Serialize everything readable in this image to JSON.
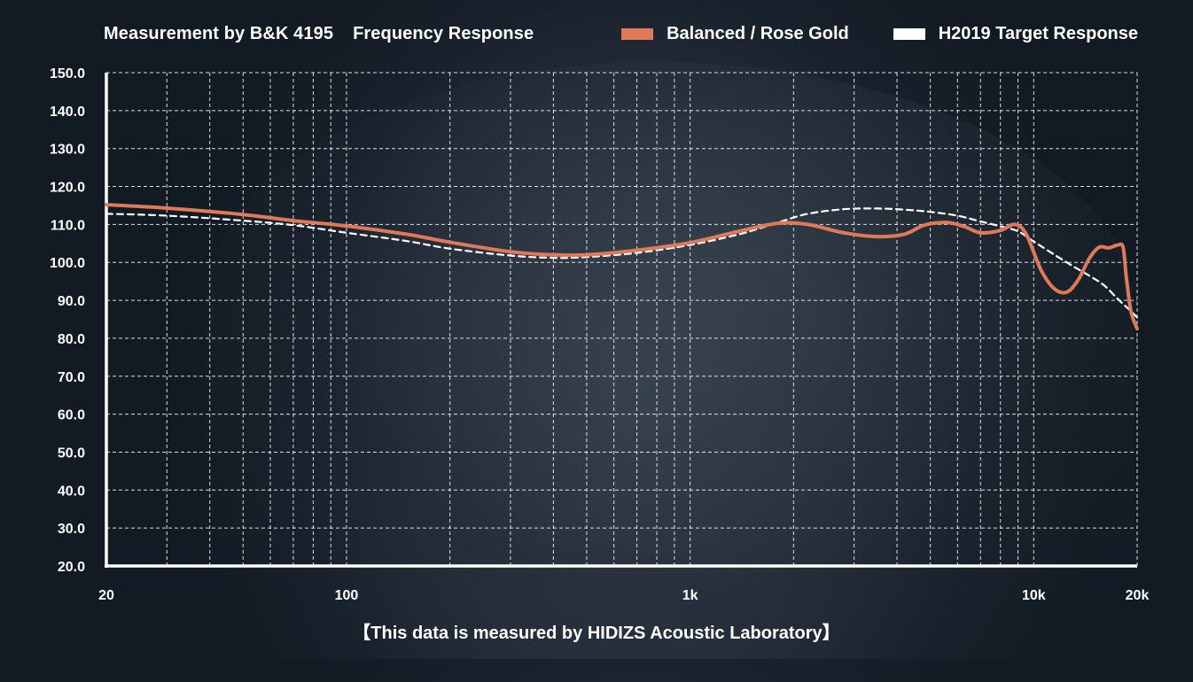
{
  "header": {
    "measurement": "Measurement by B&K 4195",
    "title": "Frequency Response"
  },
  "legend": [
    {
      "label": "Balanced / Rose Gold",
      "color": "#e0795a"
    },
    {
      "label": "H2019 Target Response",
      "color": "#ffffff"
    }
  ],
  "footer": "【This data is measured by HIDIZS Acoustic Laboratory】",
  "chart_data": {
    "type": "line",
    "title": "Frequency Response",
    "x_scale": "log",
    "xlim": [
      20,
      20000
    ],
    "ylim": [
      20,
      150
    ],
    "x_ticks": [
      {
        "value": 20,
        "label": "20"
      },
      {
        "value": 100,
        "label": "100"
      },
      {
        "value": 1000,
        "label": "1k"
      },
      {
        "value": 10000,
        "label": "10k"
      },
      {
        "value": 20000,
        "label": "20k"
      }
    ],
    "x_gridlines": [
      30,
      40,
      50,
      60,
      70,
      80,
      90,
      100,
      200,
      300,
      400,
      500,
      600,
      700,
      800,
      900,
      1000,
      2000,
      3000,
      4000,
      5000,
      6000,
      7000,
      8000,
      9000,
      10000,
      20000
    ],
    "y_ticks": [
      "150.0",
      "140.0",
      "130.0",
      "120.0",
      "110.0",
      "100.0",
      "90.0",
      "80.0",
      "70.0",
      "60.0",
      "50.0",
      "40.0",
      "30.0",
      "20.0"
    ],
    "grid": true,
    "legend_position": "top-right",
    "series": [
      {
        "name": "Balanced / Rose Gold",
        "color": "#e0795a",
        "style": "solid",
        "points": [
          [
            20,
            115.2
          ],
          [
            30,
            114.3
          ],
          [
            50,
            112.6
          ],
          [
            70,
            111.0
          ],
          [
            100,
            109.6
          ],
          [
            150,
            107.4
          ],
          [
            200,
            105.3
          ],
          [
            300,
            102.8
          ],
          [
            400,
            102.0
          ],
          [
            500,
            102.0
          ],
          [
            700,
            103.2
          ],
          [
            1000,
            105.2
          ],
          [
            1400,
            108.3
          ],
          [
            1800,
            110.3
          ],
          [
            2200,
            110.0
          ],
          [
            2800,
            107.8
          ],
          [
            3500,
            106.8
          ],
          [
            4200,
            107.4
          ],
          [
            4800,
            109.8
          ],
          [
            5600,
            110.5
          ],
          [
            6300,
            109.4
          ],
          [
            7000,
            107.8
          ],
          [
            8000,
            108.4
          ],
          [
            8800,
            110.0
          ],
          [
            9500,
            107.5
          ],
          [
            10500,
            98.0
          ],
          [
            11500,
            93.0
          ],
          [
            12500,
            92.2
          ],
          [
            13500,
            95.5
          ],
          [
            14500,
            101.0
          ],
          [
            15500,
            104.0
          ],
          [
            16500,
            103.8
          ],
          [
            17500,
            104.5
          ],
          [
            18200,
            104.0
          ],
          [
            18600,
            96.0
          ],
          [
            19200,
            87.0
          ],
          [
            20000,
            82.5
          ]
        ]
      },
      {
        "name": "H2019 Target Response",
        "color": "#ffffff",
        "style": "dashed",
        "points": [
          [
            20,
            112.8
          ],
          [
            30,
            112.3
          ],
          [
            50,
            111.0
          ],
          [
            70,
            109.8
          ],
          [
            100,
            107.8
          ],
          [
            150,
            105.6
          ],
          [
            200,
            103.6
          ],
          [
            300,
            101.8
          ],
          [
            400,
            101.2
          ],
          [
            500,
            101.4
          ],
          [
            700,
            102.5
          ],
          [
            1000,
            104.6
          ],
          [
            1400,
            107.5
          ],
          [
            1800,
            110.5
          ],
          [
            2200,
            112.8
          ],
          [
            2800,
            114.0
          ],
          [
            3500,
            114.2
          ],
          [
            4200,
            113.9
          ],
          [
            5000,
            113.3
          ],
          [
            6000,
            112.3
          ],
          [
            7000,
            110.8
          ],
          [
            8000,
            109.5
          ],
          [
            9000,
            108.2
          ],
          [
            10000,
            105.5
          ],
          [
            11500,
            102.0
          ],
          [
            13000,
            99.0
          ],
          [
            14500,
            96.5
          ],
          [
            16000,
            94.0
          ],
          [
            17500,
            90.5
          ],
          [
            19000,
            87.5
          ],
          [
            20000,
            85.5
          ]
        ]
      }
    ]
  }
}
